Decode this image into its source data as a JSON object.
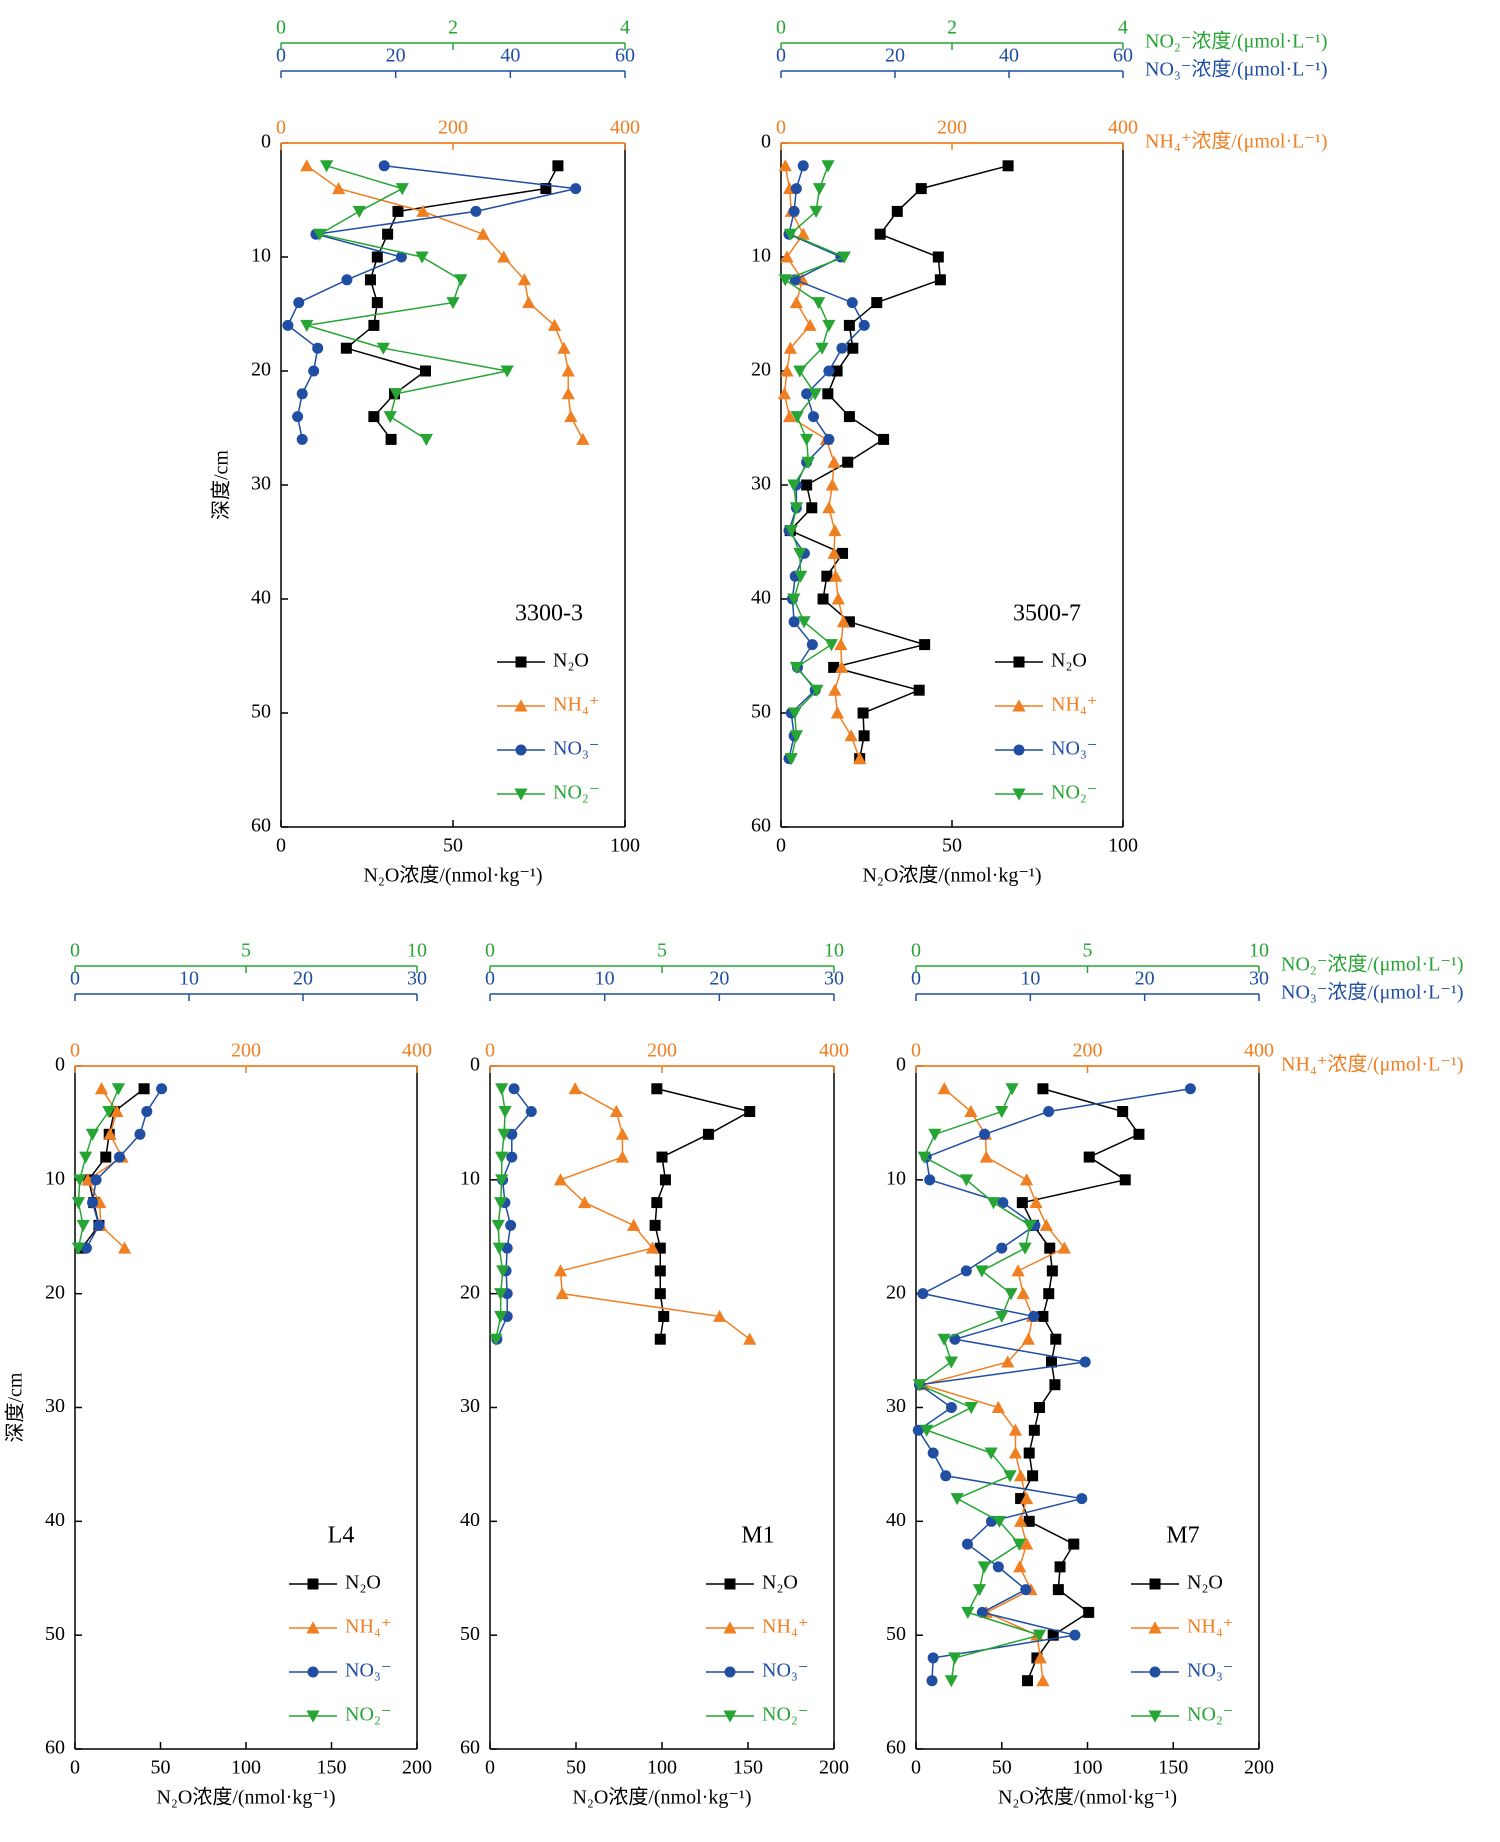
{
  "chart_data": [
    {
      "type": "line",
      "label": "3300-3",
      "ylabel": "深度/cm",
      "xlabel": "N₂O浓度/(nmol·kg⁻¹)",
      "depth": [
        2,
        4,
        6,
        8,
        10,
        12,
        14,
        16,
        18,
        20,
        22,
        24,
        26
      ],
      "ylim": [
        0,
        60
      ],
      "yticks": [
        0,
        10,
        20,
        30,
        40,
        50,
        60
      ],
      "xlim": [
        0,
        100
      ],
      "xticks": [
        0,
        50,
        100
      ],
      "x2lim": [
        0,
        400
      ],
      "x2ticks": [
        0,
        200,
        400
      ],
      "x3lim": [
        0,
        60
      ],
      "x3ticks": [
        0,
        20,
        40,
        60
      ],
      "x4lim": [
        0,
        4
      ],
      "x4ticks": [
        0,
        2,
        4
      ],
      "series": [
        {
          "name": "N₂O",
          "color": "#000000",
          "marker": "square",
          "axis": "x",
          "values": [
            80.5,
            77,
            34,
            31,
            28,
            26,
            28,
            27,
            19,
            42,
            33,
            27,
            32
          ]
        },
        {
          "name": "NH₄⁺",
          "color": "#f07f22",
          "marker": "triangle-up",
          "axis": "x2",
          "values": [
            30,
            67,
            165,
            235,
            259,
            283,
            288,
            318,
            329,
            334,
            334,
            337,
            351
          ]
        },
        {
          "name": "NO₃⁻",
          "color": "#1f4ea3",
          "marker": "circle",
          "axis": "x3",
          "values": [
            18,
            51.4,
            34,
            6.1,
            21,
            11.5,
            3.1,
            1.2,
            6.4,
            5.7,
            3.7,
            2.9,
            3.7
          ]
        },
        {
          "name": "NO₂⁻",
          "color": "#27a534",
          "marker": "triangle-down",
          "axis": "x4",
          "values": [
            0.53,
            1.41,
            0.91,
            0.45,
            1.64,
            2.09,
            2.0,
            0.3,
            1.19,
            2.63,
            1.34,
            1.27,
            1.69
          ]
        }
      ]
    },
    {
      "type": "line",
      "label": "3500-7",
      "xlabel": "N₂O浓度/(nmol·kg⁻¹)",
      "depth": [
        2,
        4,
        6,
        8,
        10,
        12,
        14,
        16,
        18,
        20,
        22,
        24,
        26,
        28,
        30,
        32,
        34,
        36,
        38,
        40,
        42,
        44,
        46,
        48,
        50,
        52,
        54
      ],
      "ylim": [
        0,
        60
      ],
      "yticks": [
        0,
        10,
        20,
        30,
        40,
        50,
        60
      ],
      "xlim": [
        0,
        100
      ],
      "xticks": [
        0,
        50,
        100
      ],
      "x2lim": [
        0,
        400
      ],
      "x2ticks": [
        0,
        200,
        400
      ],
      "x2label": "NH₄⁺浓度/(μmol·L⁻¹)",
      "x3lim": [
        0,
        60
      ],
      "x3ticks": [
        0,
        20,
        40,
        60
      ],
      "x3label": "NO₃⁻浓度/(μmol·L⁻¹)",
      "x4lim": [
        0,
        4
      ],
      "x4ticks": [
        0,
        2,
        4
      ],
      "x4label": "NO₂⁻浓度/(μmol·L⁻¹)",
      "series": [
        {
          "name": "N₂O",
          "color": "#000000",
          "marker": "square",
          "axis": "x",
          "values": [
            66.4,
            41,
            34,
            29,
            46,
            46.6,
            28,
            20,
            21,
            16.4,
            13.7,
            20,
            30,
            19.5,
            7.5,
            9,
            2.7,
            18,
            13.4,
            12.3,
            20,
            42,
            15.4,
            40.4,
            24,
            24.3,
            23
          ]
        },
        {
          "name": "NH₄⁺",
          "color": "#f07f22",
          "marker": "triangle-up",
          "axis": "x2",
          "values": [
            5,
            10,
            12,
            26,
            7,
            25,
            18,
            34,
            11,
            7,
            4,
            10,
            53,
            62,
            60,
            56,
            63,
            62,
            64,
            67,
            73,
            70,
            71,
            63,
            66,
            82,
            92
          ]
        },
        {
          "name": "NO₃⁻",
          "color": "#1f4ea3",
          "marker": "circle",
          "axis": "x3",
          "values": [
            3.9,
            2.7,
            2.3,
            1.4,
            10.5,
            2.5,
            12.5,
            14.6,
            10.7,
            8.4,
            4.5,
            5.7,
            8.4,
            4.5,
            2.7,
            2.7,
            1.4,
            4.1,
            2.5,
            2,
            2.3,
            5.5,
            2.9,
            6,
            1.8,
            2.3,
            1.4
          ]
        },
        {
          "name": "NO₂⁻",
          "color": "#27a534",
          "marker": "triangle-down",
          "axis": "x4",
          "values": [
            0.55,
            0.45,
            0.41,
            0.11,
            0.74,
            0.05,
            0.44,
            0.56,
            0.48,
            0.22,
            0.4,
            0.19,
            0.3,
            0.32,
            0.15,
            0.18,
            0.12,
            0.22,
            0.23,
            0.15,
            0.27,
            0.59,
            0.18,
            0.42,
            0.16,
            0.18,
            0.12
          ]
        }
      ]
    },
    {
      "type": "line",
      "label": "L4",
      "ylabel": "深度/cm",
      "xlabel": "N₂O浓度/(nmol·kg⁻¹)",
      "depth": [
        2,
        4,
        6,
        8,
        10,
        12,
        14,
        16
      ],
      "ylim": [
        0,
        60
      ],
      "yticks": [
        0,
        10,
        20,
        30,
        40,
        50,
        60
      ],
      "xlim": [
        0,
        200
      ],
      "xticks": [
        0,
        50,
        100,
        150,
        200
      ],
      "x2lim": [
        0,
        400
      ],
      "x2ticks": [
        0,
        200,
        400
      ],
      "x3lim": [
        0,
        30
      ],
      "x3ticks": [
        0,
        10,
        20,
        30
      ],
      "x4lim": [
        0,
        10
      ],
      "x4ticks": [
        0,
        5,
        10
      ],
      "series": [
        {
          "name": "N₂O",
          "color": "#000000",
          "marker": "square",
          "axis": "x",
          "values": [
            40.4,
            23,
            20,
            18,
            8,
            11,
            14,
            4
          ]
        },
        {
          "name": "NH₄⁺",
          "color": "#f07f22",
          "marker": "triangle-up",
          "axis": "x2",
          "values": [
            31,
            49,
            41,
            55,
            15,
            29,
            30,
            58
          ]
        },
        {
          "name": "NO₃⁻",
          "color": "#1f4ea3",
          "marker": "circle",
          "axis": "x3",
          "values": [
            7.6,
            6.3,
            5.7,
            3.9,
            1.85,
            1.54,
            2.1,
            1.0
          ]
        },
        {
          "name": "NO₂⁻",
          "color": "#27a534",
          "marker": "triangle-down",
          "axis": "x4",
          "values": [
            1.27,
            0.99,
            0.51,
            0.31,
            0.14,
            0.1,
            0.24,
            0.1
          ]
        }
      ]
    },
    {
      "type": "line",
      "label": "M1",
      "xlabel": "N₂O浓度/(nmol·kg⁻¹)",
      "depth": [
        2,
        4,
        6,
        8,
        10,
        12,
        14,
        16,
        18,
        20,
        22,
        24
      ],
      "ylim": [
        0,
        60
      ],
      "yticks": [
        0,
        10,
        20,
        30,
        40,
        50,
        60
      ],
      "xlim": [
        0,
        200
      ],
      "xticks": [
        0,
        50,
        100,
        150,
        200
      ],
      "x2lim": [
        0,
        400
      ],
      "x2ticks": [
        0,
        200,
        400
      ],
      "x3lim": [
        0,
        30
      ],
      "x3ticks": [
        0,
        10,
        20,
        30
      ],
      "x4lim": [
        0,
        10
      ],
      "x4ticks": [
        0,
        5,
        10
      ],
      "series": [
        {
          "name": "N₂O",
          "color": "#000000",
          "marker": "square",
          "axis": "x",
          "values": [
            97,
            151,
            127,
            100,
            102,
            97,
            96,
            99,
            99,
            99,
            101,
            99
          ]
        },
        {
          "name": "NH₄⁺",
          "color": "#f07f22",
          "marker": "triangle-up",
          "axis": "x2",
          "values": [
            99,
            147,
            154,
            154,
            82,
            110,
            167,
            189,
            82,
            84,
            267,
            302
          ]
        },
        {
          "name": "NO₃⁻",
          "color": "#1f4ea3",
          "marker": "circle",
          "axis": "x3",
          "values": [
            2.1,
            3.6,
            1.9,
            1.9,
            1.1,
            1.3,
            1.8,
            1.5,
            1.4,
            1.5,
            1.5,
            0.6
          ]
        },
        {
          "name": "NO₂⁻",
          "color": "#27a534",
          "marker": "triangle-down",
          "axis": "x4",
          "values": [
            0.34,
            0.44,
            0.41,
            0.34,
            0.34,
            0.31,
            0.24,
            0.27,
            0.37,
            0.31,
            0.31,
            0.17
          ]
        }
      ]
    },
    {
      "type": "line",
      "label": "M7",
      "xlabel": "N₂O浓度/(nmol·kg⁻¹)",
      "depth": [
        2,
        4,
        6,
        8,
        10,
        12,
        14,
        16,
        18,
        20,
        22,
        24,
        26,
        28,
        30,
        32,
        34,
        36,
        38,
        40,
        42,
        44,
        46,
        48,
        50,
        52,
        54
      ],
      "ylim": [
        0,
        60
      ],
      "yticks": [
        0,
        10,
        20,
        30,
        40,
        50,
        60
      ],
      "xlim": [
        0,
        200
      ],
      "xticks": [
        0,
        50,
        100,
        150,
        200
      ],
      "x2lim": [
        0,
        400
      ],
      "x2ticks": [
        0,
        200,
        400
      ],
      "x2label": "NH₄⁺浓度/(μmol·L⁻¹)",
      "x3lim": [
        0,
        30
      ],
      "x3ticks": [
        0,
        10,
        20,
        30
      ],
      "x3label": "NO₃⁻浓度/(μmol·L⁻¹)",
      "x4lim": [
        0,
        10
      ],
      "x4ticks": [
        0,
        5,
        10
      ],
      "x4label": "NO₂⁻浓度/(μmol·L⁻¹)",
      "series": [
        {
          "name": "N₂O",
          "color": "#000000",
          "marker": "square",
          "axis": "x",
          "values": [
            74,
            120.5,
            130,
            101,
            122,
            62,
            68.5,
            78,
            79.5,
            77.4,
            74,
            81.5,
            79,
            81,
            72,
            69,
            66,
            68,
            61,
            66,
            92,
            84,
            83,
            100.7,
            80,
            70.5,
            65
          ]
        },
        {
          "name": "NH₄⁺",
          "color": "#f07f22",
          "marker": "triangle-up",
          "axis": "x2",
          "values": [
            33,
            64,
            81,
            82,
            129,
            140,
            152,
            173,
            119,
            125,
            136,
            131,
            107,
            8,
            96,
            116,
            116,
            122,
            129,
            122,
            129,
            121,
            134,
            82,
            141,
            145,
            148
          ]
        },
        {
          "name": "NO₃⁻",
          "color": "#1f4ea3",
          "marker": "circle",
          "axis": "x3",
          "values": [
            24,
            11.6,
            6,
            0.9,
            1.2,
            7.6,
            10.4,
            7.5,
            4.4,
            0.6,
            10.3,
            3.4,
            14.8,
            0.3,
            3.1,
            0.2,
            1.5,
            2.6,
            14.5,
            6.6,
            4.5,
            7.2,
            9.6,
            5.8,
            13.9,
            1.5,
            1.4
          ]
        },
        {
          "name": "NO₂⁻",
          "color": "#27a534",
          "marker": "triangle-down",
          "axis": "x4",
          "values": [
            2.8,
            2.5,
            0.55,
            0.24,
            1.47,
            2.26,
            3.32,
            3.18,
            1.92,
            2.77,
            2.5,
            0.82,
            1.03,
            0.1,
            1.61,
            0.31,
            2.19,
            2.74,
            1.2,
            2.43,
            3.01,
            1.99,
            1.85,
            1.51,
            3.6,
            1.13,
            1.03
          ]
        }
      ]
    }
  ]
}
